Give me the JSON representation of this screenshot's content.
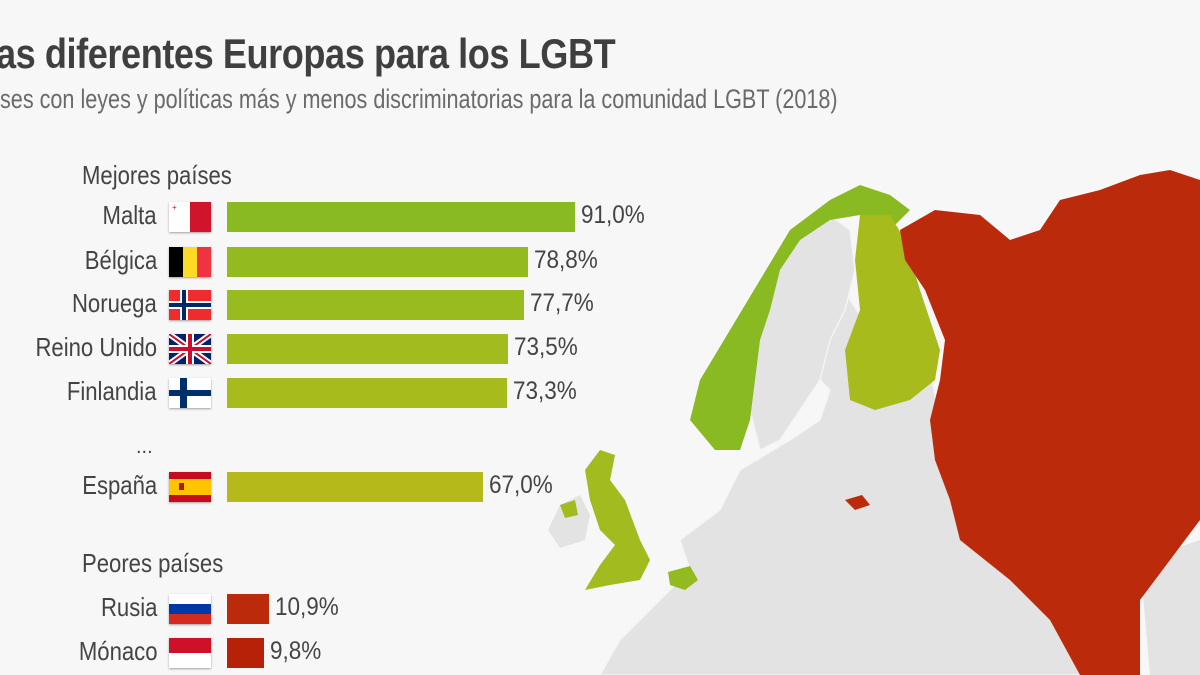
{
  "title": "as diferentes Europas para los LGBT",
  "subtitle": "ses con leyes y políticas más y menos discriminatorias para la comunidad LGBT (2018)",
  "colors": {
    "best": "#8aba22",
    "spain": "#b5b91a",
    "worst": "#bb2a0a",
    "map_gray": "#e3e3e3",
    "background": "#f7f7f7"
  },
  "chart_data": [
    {
      "type": "bar",
      "section_title": "Mejores países",
      "categories": [
        "Malta",
        "Bélgica",
        "Noruega",
        "Reino Unido",
        "Finlandia",
        "España"
      ],
      "values": [
        91.0,
        78.8,
        77.7,
        73.5,
        73.3,
        67.0
      ],
      "value_labels": [
        "91,0%",
        "78,8%",
        "77,7%",
        "73,5%",
        "73,3%",
        "67,0%"
      ],
      "flag_icons": [
        "malta-flag-icon",
        "belgium-flag-icon",
        "norway-flag-icon",
        "uk-flag-icon",
        "finland-flag-icon",
        "spain-flag-icon"
      ],
      "bar_colors": [
        "#8aba22",
        "#93bb20",
        "#98bc20",
        "#a2bb1e",
        "#a8bb1c",
        "#b5b91a"
      ],
      "ellipsis": "..."
    },
    {
      "type": "bar",
      "section_title": "Peores países",
      "categories": [
        "Rusia",
        "Mónaco"
      ],
      "values": [
        10.9,
        9.8
      ],
      "value_labels": [
        "10,9%",
        "9,8%"
      ],
      "flag_icons": [
        "russia-flag-icon",
        "monaco-flag-icon"
      ],
      "bar_colors": [
        "#bb2a0a",
        "#b52208"
      ]
    }
  ]
}
